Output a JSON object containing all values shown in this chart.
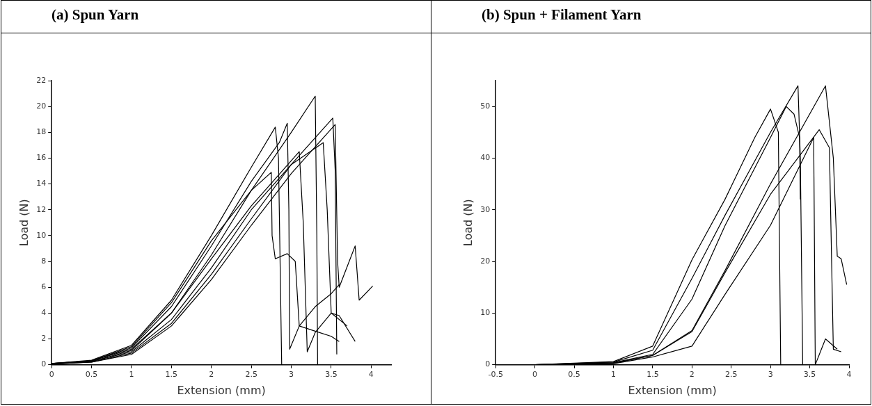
{
  "chart_data": [
    {
      "type": "line",
      "title": "(a)  Spun Yarn",
      "xlabel": "Extension (mm)",
      "ylabel": "Load (N)",
      "xlim": [
        0,
        4.25
      ],
      "ylim": [
        0,
        22
      ],
      "xticks": [
        0,
        0.5,
        1,
        1.5,
        2,
        2.5,
        3,
        3.5,
        4
      ],
      "yticks": [
        0,
        2,
        4,
        6,
        8,
        10,
        12,
        14,
        16,
        18,
        20,
        22
      ],
      "grid": false,
      "legend": false,
      "marker": "none",
      "line_style": "solid",
      "series": [
        {
          "color": "#000000",
          "x": [
            0,
            0.5,
            1,
            1.5,
            2,
            2.5,
            2.8,
            2.84,
            2.88
          ],
          "values": [
            0.1,
            0.35,
            1.5,
            5,
            10,
            15.3,
            18.4,
            16,
            0
          ]
        },
        {
          "color": "#000000",
          "x": [
            0,
            0.5,
            1,
            1.5,
            2,
            2.5,
            2.85,
            2.95,
            2.97,
            2.98,
            3.1,
            3.3,
            3.5,
            3.6
          ],
          "values": [
            0.1,
            0.3,
            1.3,
            4.5,
            9.2,
            14.2,
            17.2,
            18.7,
            12,
            1.2,
            3,
            4.5,
            5.5,
            6.2
          ]
        },
        {
          "color": "#000000",
          "x": [
            0,
            0.5,
            1,
            1.5,
            2,
            2.5,
            3,
            3.3,
            3.32,
            3.33
          ],
          "values": [
            0.1,
            0.3,
            1.2,
            4,
            8.5,
            13.5,
            18,
            20.8,
            10,
            0
          ]
        },
        {
          "color": "#000000",
          "x": [
            0,
            0.5,
            1,
            1.5,
            2,
            2.5,
            3,
            3.52,
            3.55,
            3.57
          ],
          "values": [
            0.05,
            0.2,
            0.9,
            3.2,
            7,
            11.3,
            15.5,
            19.1,
            15,
            0.8
          ]
        },
        {
          "color": "#000000",
          "x": [
            0,
            0.5,
            1,
            1.5,
            2,
            2.5,
            3,
            3.55,
            3.58,
            3.6,
            3.8,
            3.85,
            4.02
          ],
          "values": [
            0.05,
            0.2,
            0.8,
            3,
            6.6,
            10.8,
            14.8,
            18.6,
            8,
            6,
            9.2,
            5,
            6.1
          ]
        },
        {
          "color": "#000000",
          "x": [
            0,
            0.5,
            1,
            1.5,
            2,
            2.5,
            2.75,
            2.76,
            2.8,
            2.95,
            3.05,
            3.1,
            3.3,
            3.5,
            3.6
          ],
          "values": [
            0.1,
            0.3,
            1.4,
            4.8,
            9.6,
            13.5,
            14.9,
            10,
            8.2,
            8.6,
            8,
            3,
            2.6,
            2.2,
            1.8
          ]
        },
        {
          "color": "#000000",
          "x": [
            0,
            0.5,
            1,
            1.5,
            2,
            2.5,
            3,
            3.4,
            3.45,
            3.5,
            3.6,
            3.8
          ],
          "values": [
            0.05,
            0.25,
            1,
            3.5,
            7.5,
            12,
            15.5,
            17.2,
            12,
            4,
            3.8,
            1.8
          ]
        },
        {
          "color": "#000000",
          "x": [
            0,
            0.5,
            1,
            1.5,
            2,
            2.5,
            3,
            3.1,
            3.15,
            3.2,
            3.3,
            3.5,
            3.7
          ],
          "values": [
            0.05,
            0.25,
            1.1,
            4,
            8.2,
            12.3,
            15.8,
            16.5,
            11,
            1,
            2.5,
            4,
            3
          ]
        }
      ]
    },
    {
      "type": "line",
      "title": "(b)  Spun + Filament Yarn",
      "xlabel": "Extension (mm)",
      "ylabel": "Load (N)",
      "xlim": [
        -0.5,
        4
      ],
      "ylim": [
        0,
        55
      ],
      "xticks": [
        -0.5,
        0,
        0.5,
        1,
        1.5,
        2,
        2.5,
        3,
        3.5,
        4
      ],
      "yticks": [
        0,
        10,
        20,
        30,
        40,
        50
      ],
      "grid": false,
      "legend": false,
      "marker": "none",
      "line_style": "solid",
      "series": [
        {
          "color": "#000000",
          "x": [
            0,
            1,
            1.5,
            2,
            2.42,
            2.8,
            3,
            3.1,
            3.13
          ],
          "values": [
            0,
            0.6,
            3.6,
            20.3,
            32,
            44,
            49.5,
            45,
            0
          ]
        },
        {
          "color": "#000000",
          "x": [
            0,
            1,
            1.5,
            2,
            2.42,
            3,
            3.35,
            3.38,
            3.41
          ],
          "values": [
            0,
            0.5,
            2.8,
            16.7,
            28.9,
            45,
            54,
            40,
            0
          ]
        },
        {
          "color": "#000000",
          "x": [
            0,
            1,
            1.5,
            2,
            2.42,
            3,
            3.2,
            3.3,
            3.37,
            3.38
          ],
          "values": [
            0,
            0.4,
            2,
            12.7,
            26.9,
            44,
            50,
            48.5,
            44,
            32
          ]
        },
        {
          "color": "#000000",
          "x": [
            0,
            1,
            1.5,
            2,
            2.42,
            3,
            3.7,
            3.8,
            3.85,
            3.9,
            3.97
          ],
          "values": [
            0,
            0.3,
            1.8,
            6.6,
            18.2,
            35,
            54,
            40,
            21,
            20.5,
            15.5
          ]
        },
        {
          "color": "#000000",
          "x": [
            0,
            1,
            1.5,
            2,
            2.42,
            3,
            3.62,
            3.75,
            3.8,
            3.9
          ],
          "values": [
            0,
            0.3,
            1.8,
            6.4,
            17.8,
            33,
            45.5,
            42,
            3,
            2.5
          ]
        },
        {
          "color": "#000000",
          "x": [
            0,
            1,
            1.5,
            2,
            2.42,
            3,
            3.55,
            3.57,
            3.7,
            3.85
          ],
          "values": [
            0,
            0.2,
            1.5,
            3.6,
            13.6,
            27,
            44,
            0,
            5,
            3
          ]
        }
      ]
    }
  ]
}
